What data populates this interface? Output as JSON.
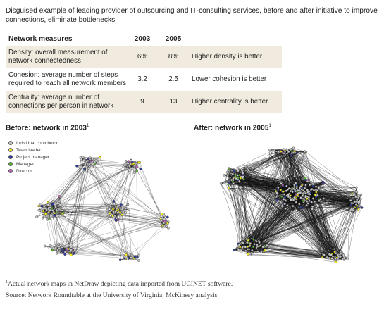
{
  "intro": "Disguised example of leading provider of outsourcing and IT-consulting services, before and after initiative to improve connections, eliminate bottlenecks",
  "table": {
    "headers": [
      "Network measures",
      "2003",
      "2005",
      ""
    ],
    "rows": [
      {
        "measure": "Density: overall measurement of network connectedness",
        "y2003": "6%",
        "y2005": "8%",
        "note": "Higher density is better"
      },
      {
        "measure": "Cohesion: average number of steps required to reach all network members",
        "y2003": "3.2",
        "y2005": "2.5",
        "note": "Lower cohesion is better"
      },
      {
        "measure": "Centrality: average number of connections per person in network",
        "y2003": "9",
        "y2005": "13",
        "note": "Higher centrality is better"
      }
    ]
  },
  "before": {
    "title": "Before: network in 2003",
    "sup": "1"
  },
  "after": {
    "title": "After: network in 2005",
    "sup": "1"
  },
  "legend": [
    {
      "label": "Individual contributor",
      "color": "#c8c8c8"
    },
    {
      "label": "Team leader",
      "color": "#f2ec1c"
    },
    {
      "label": "Project manager",
      "color": "#2e3c9c"
    },
    {
      "label": "Manager",
      "color": "#58b030"
    },
    {
      "label": "Director",
      "color": "#c060b8"
    }
  ],
  "footnote": {
    "sup": "1",
    "text": "Actual network maps in NetDraw depicting data imported from UCINET software."
  },
  "source": "Source: Network Roundtable at the University of Virginia; McKinsey analysis"
}
